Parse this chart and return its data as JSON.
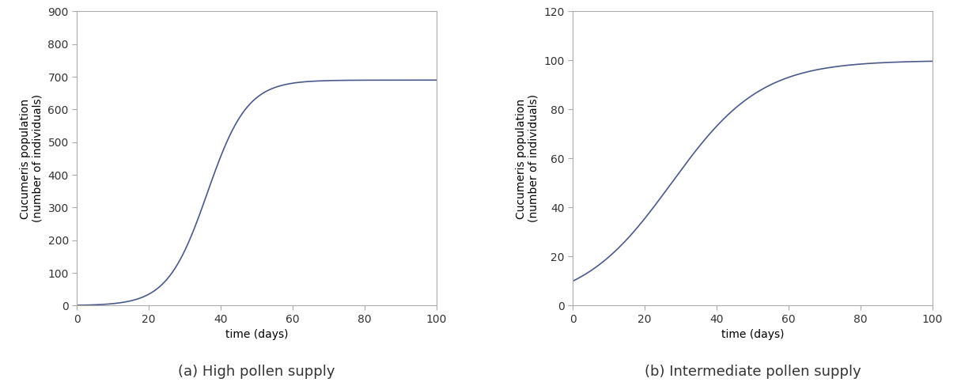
{
  "subplot_a": {
    "title": "(a) High pollen supply",
    "ylabel": "Cucumeris population\n(number of individuals)",
    "xlabel": "time (days)",
    "ylim": [
      0,
      900
    ],
    "xlim": [
      0,
      100
    ],
    "yticks": [
      0,
      100,
      200,
      300,
      400,
      500,
      600,
      700,
      800,
      900
    ],
    "xticks": [
      0,
      20,
      40,
      60,
      80,
      100
    ],
    "N0": 1,
    "K": 690,
    "r": 0.18,
    "line_color": "#4a5a8a"
  },
  "subplot_b": {
    "title": "(b) Intermediate pollen supply",
    "ylabel": "Cucumeris population\n(number of individuals)",
    "xlabel": "time (days)",
    "ylim": [
      0,
      120
    ],
    "xlim": [
      0,
      100
    ],
    "yticks": [
      0,
      20,
      40,
      60,
      80,
      100,
      120
    ],
    "xticks": [
      0,
      20,
      40,
      60,
      80,
      100
    ],
    "N0": 10,
    "K": 100,
    "r": 0.08,
    "line_color": "#4a5a8a"
  },
  "figsize": [
    12.15,
    4.83
  ],
  "dpi": 100,
  "background_color": "#ffffff",
  "title_fontsize": 13,
  "label_fontsize": 10,
  "tick_fontsize": 10
}
